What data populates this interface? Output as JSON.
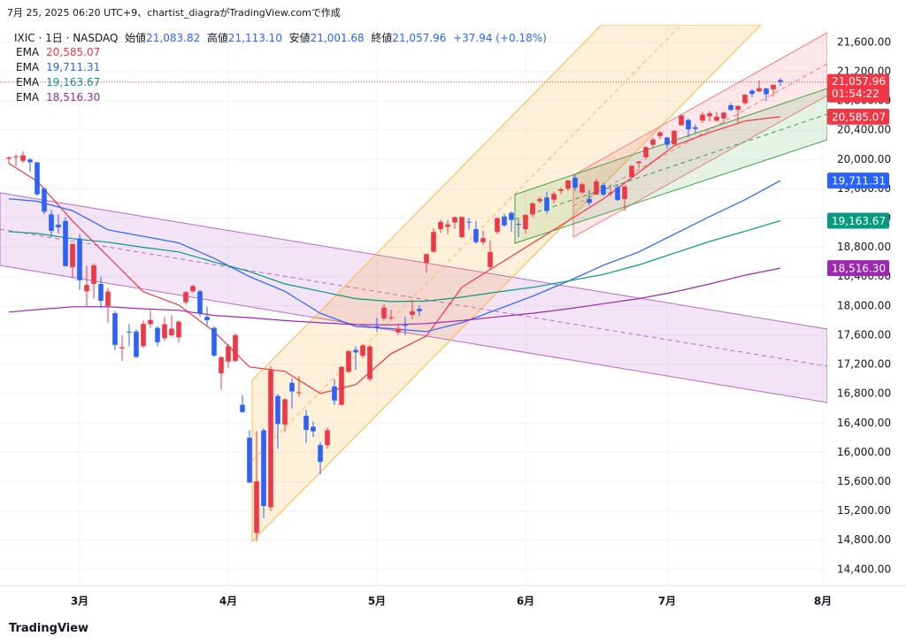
{
  "attribution": "7月 25, 2025 06:20 UTC+9、chartist_diagraがTradingView.comで作成",
  "footer": "TradingView",
  "chart_data": {
    "type": "candlestick",
    "header": {
      "symbol": "IXIC · 1日 · NASDAQ",
      "open_name": "始値",
      "high_name": "高値",
      "low_name": "安値",
      "close_name": "終値",
      "change": "+37.94 (+0.18%)",
      "countdown": "01:54:22"
    },
    "up_color": "#f23645",
    "down_color": "#2962ff",
    "ylim": [
      14180,
      21840
    ],
    "xlim": [
      -1.25,
      115.625
    ],
    "grid": true,
    "yticks": [
      {
        "value": 14400,
        "label": "14,400.00"
      },
      {
        "value": 14800,
        "label": "14,800.00"
      },
      {
        "value": 15200,
        "label": "15,200.00"
      },
      {
        "value": 15600,
        "label": "15,600.00"
      },
      {
        "value": 16000,
        "label": "16,000.00"
      },
      {
        "value": 16400,
        "label": "16,400.00"
      },
      {
        "value": 16800,
        "label": "16,800.00"
      },
      {
        "value": 17200,
        "label": "17,200.00"
      },
      {
        "value": 17600,
        "label": "17,600.00"
      },
      {
        "value": 18000,
        "label": "18,000.00"
      },
      {
        "value": 18400,
        "label": "18,400.00"
      },
      {
        "value": 18800,
        "label": "18,800.00"
      },
      {
        "value": 19200,
        "label": "19,200.00"
      },
      {
        "value": 19600,
        "label": "19,600.00"
      },
      {
        "value": 20000,
        "label": "20,000.00"
      },
      {
        "value": 20400,
        "label": "20,400.00"
      },
      {
        "value": 20800,
        "label": "20,800.00"
      },
      {
        "value": 21200,
        "label": "21,200.00"
      },
      {
        "value": 21600,
        "label": "21,600.00"
      }
    ],
    "xticks": [
      {
        "value": 10,
        "label": "3月"
      },
      {
        "value": 31,
        "label": "4月"
      },
      {
        "value": 52,
        "label": "5月"
      },
      {
        "value": 73,
        "label": "6月"
      },
      {
        "value": 93,
        "label": "7月"
      },
      {
        "value": 115,
        "label": "8月"
      }
    ],
    "candles": {
      "open": [
        20010,
        20040,
        19980,
        20000,
        19960,
        19600,
        19250,
        19110,
        19160,
        18530,
        18920,
        18200,
        18300,
        18300,
        18000,
        17900,
        17420,
        17650,
        17650,
        17450,
        17750,
        17700,
        17560,
        17600,
        17570,
        18050,
        18200,
        18200,
        17850,
        17700,
        17080,
        17240,
        17250,
        16650,
        16200,
        14900,
        16300,
        15250,
        16770,
        16380,
        16950,
        16820,
        16500,
        16350,
        16100,
        16100,
        16900,
        16650,
        17100,
        17400,
        17320,
        17000,
        17720,
        17830,
        17830,
        17640,
        17740,
        17880,
        17960,
        18590,
        18740,
        19050,
        19080,
        19140,
        18940,
        19150,
        19050,
        18870,
        18530,
        19010,
        19220,
        19270,
        19120,
        19050,
        19250,
        19430,
        19480,
        19450,
        19570,
        19600,
        19750,
        19550,
        19460,
        19520,
        19650,
        19530,
        19620,
        19460,
        19760,
        19950,
        20030,
        20200,
        20320,
        20300,
        20210,
        20470,
        20540,
        20440,
        20530,
        20590,
        20530,
        20560,
        20740,
        20680,
        20770,
        20940,
        20930,
        20970,
        20960,
        21083.82
      ],
      "high": [
        20045,
        20070,
        20110,
        20020,
        19970,
        19620,
        19310,
        19250,
        19210,
        18850,
        18980,
        18550,
        18580,
        18400,
        18250,
        17930,
        17600,
        17750,
        17680,
        17800,
        17940,
        17720,
        17850,
        17870,
        17800,
        18200,
        18290,
        18220,
        17990,
        17720,
        17320,
        17480,
        17630,
        16780,
        16300,
        16290,
        16330,
        17180,
        16800,
        16740,
        17010,
        17040,
        16580,
        16420,
        16140,
        16340,
        17000,
        17180,
        17390,
        17450,
        17480,
        17470,
        17840,
        18020,
        17950,
        17760,
        17850,
        18080,
        18000,
        18710,
        19060,
        19180,
        19170,
        19220,
        19220,
        19200,
        19160,
        19030,
        18890,
        19210,
        19260,
        19290,
        19180,
        19250,
        19420,
        19490,
        19560,
        19560,
        19620,
        19720,
        19790,
        19680,
        19580,
        19740,
        19680,
        19640,
        19660,
        19650,
        19920,
        19980,
        20190,
        20300,
        20390,
        20310,
        20400,
        20620,
        20560,
        20480,
        20650,
        20660,
        20650,
        20650,
        20770,
        20740,
        20890,
        20960,
        21080,
        20980,
        21020,
        21113.1
      ],
      "low": [
        19935,
        19910,
        19950,
        19830,
        19500,
        19250,
        18940,
        18990,
        18540,
        18380,
        18220,
        18000,
        18100,
        17970,
        17770,
        17400,
        17250,
        17450,
        17290,
        17430,
        17700,
        17450,
        17520,
        17580,
        17500,
        18020,
        18180,
        17850,
        17730,
        17300,
        16855,
        17150,
        17230,
        16540,
        15580,
        14784,
        15100,
        15200,
        16050,
        16280,
        16600,
        16760,
        16130,
        16210,
        15700,
        16050,
        16650,
        16640,
        17090,
        17130,
        17290,
        16970,
        17650,
        17800,
        17800,
        17600,
        17600,
        17820,
        17860,
        18450,
        18730,
        19000,
        18980,
        19050,
        18930,
        19040,
        18850,
        18830,
        18500,
        18980,
        19080,
        19010,
        18940,
        18990,
        19210,
        19400,
        19260,
        19400,
        19530,
        19570,
        19570,
        19530,
        19370,
        19520,
        19500,
        19500,
        19430,
        19300,
        19740,
        19880,
        20000,
        20150,
        20280,
        20150,
        20190,
        20460,
        20300,
        20360,
        20500,
        20520,
        20520,
        20500,
        20660,
        20480,
        20750,
        20850,
        20920,
        20800,
        20860,
        21001.68
      ],
      "close": [
        20027,
        20041,
        20056,
        19962,
        19524,
        19287,
        19026,
        19075,
        18544,
        18847,
        18350,
        18285,
        18553,
        18069,
        18196,
        17468,
        17436,
        17648,
        17303,
        17754,
        17808,
        17504,
        17750,
        17691,
        17784,
        18188,
        18272,
        17900,
        17805,
        17323,
        17299,
        17450,
        17601,
        16551,
        15588,
        15603,
        15268,
        17125,
        16387,
        16724,
        16832,
        16823,
        16307,
        16287,
        15870,
        16301,
        16708,
        17166,
        17383,
        17366,
        17461,
        17446,
        17710,
        17978,
        17844,
        17690,
        17739,
        17929,
        17928,
        18708,
        19010,
        19146,
        19112,
        19211,
        19215,
        19143,
        18872,
        18925,
        18737,
        19199,
        19101,
        19175,
        19114,
        19243,
        19398,
        19460,
        19298,
        19530,
        19591,
        19715,
        19615,
        19662,
        19407,
        19701,
        19521,
        19546,
        19447,
        19631,
        19913,
        19973,
        20168,
        20273,
        20370,
        20202,
        20393,
        20601,
        20412,
        20418,
        20611,
        20630,
        20585,
        20640,
        20677,
        20730,
        20885,
        20896,
        20974,
        20892,
        21020,
        21057.96
      ],
      "last_labels": {
        "open": "21,083.82",
        "high": "21,113.10",
        "low": "21,001.68",
        "close": "21,057.96"
      }
    },
    "series": [
      {
        "name": "EMA",
        "color": "#f23645",
        "last_label": "20,585.07",
        "x": [
          0,
          4,
          9,
          14,
          19,
          24,
          29,
          34,
          39,
          44,
          49,
          54,
          59,
          64,
          69,
          74,
          79,
          84,
          89,
          94,
          99,
          104,
          109
        ],
        "values": [
          19945,
          19703,
          19160,
          18677,
          18194,
          18012,
          17650,
          17167,
          17106,
          16804,
          16925,
          17348,
          17589,
          18254,
          18556,
          18858,
          19160,
          19462,
          19824,
          20187,
          20368,
          20525,
          20585.07
        ]
      },
      {
        "name": "EMA",
        "color": "#2962ff",
        "last_label": "19,711.31",
        "x": [
          0,
          4,
          9,
          14,
          19,
          24,
          29,
          34,
          39,
          44,
          49,
          54,
          59,
          64,
          69,
          74,
          79,
          84,
          89,
          94,
          99,
          104,
          109
        ],
        "values": [
          19462,
          19430,
          19300,
          19039,
          18950,
          18860,
          18650,
          18400,
          18200,
          17900,
          17720,
          17690,
          17650,
          17771,
          17952,
          18133,
          18338,
          18556,
          18737,
          18979,
          19220,
          19450,
          19711.31
        ]
      },
      {
        "name": "EMA",
        "color": "#089981",
        "last_label": "19,163.67",
        "x": [
          0,
          4,
          9,
          14,
          19,
          24,
          29,
          34,
          39,
          44,
          49,
          54,
          59,
          64,
          69,
          74,
          79,
          84,
          89,
          94,
          99,
          104,
          109
        ],
        "values": [
          19015,
          18990,
          18918,
          18870,
          18800,
          18737,
          18600,
          18470,
          18300,
          18200,
          18100,
          18060,
          18065,
          18120,
          18190,
          18254,
          18340,
          18430,
          18560,
          18720,
          18880,
          19020,
          19163.67
        ]
      },
      {
        "name": "EMA",
        "color": "#9c27b0",
        "last_label": "18,516.30",
        "x": [
          0,
          4,
          9,
          14,
          19,
          24,
          29,
          34,
          39,
          44,
          49,
          54,
          59,
          64,
          69,
          74,
          79,
          84,
          89,
          94,
          99,
          104,
          109
        ],
        "values": [
          17916,
          17950,
          17988,
          17990,
          17960,
          17940,
          17870,
          17840,
          17800,
          17770,
          17745,
          17740,
          17760,
          17800,
          17850,
          17900,
          17960,
          18030,
          18100,
          18190,
          18300,
          18420,
          18516.3
        ]
      }
    ]
  }
}
